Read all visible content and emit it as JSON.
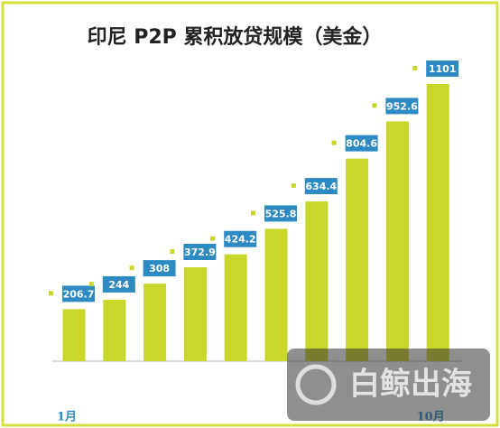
{
  "chart_data": {
    "type": "bar",
    "title": "印尼 P2P 累积放贷规模（美金）",
    "categories": [
      "1月",
      null,
      null,
      null,
      null,
      null,
      null,
      null,
      null,
      "10月"
    ],
    "values": [
      206.7,
      244,
      308,
      372.9,
      424.2,
      525.8,
      634.4,
      804.6,
      952.6,
      1101
    ],
    "color": "#c9d62a",
    "label_color": "#2e8ac2",
    "watermark": "白鲸出海"
  }
}
